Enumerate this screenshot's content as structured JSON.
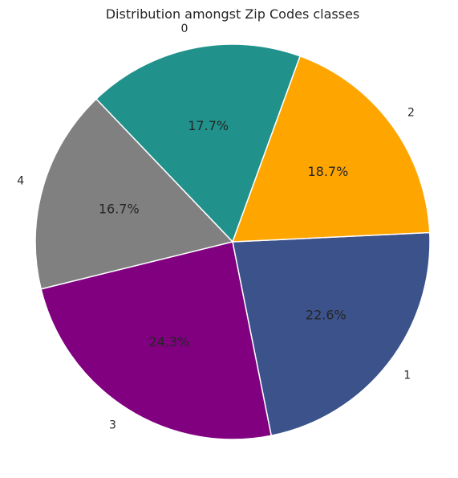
{
  "chart_data": {
    "type": "pie",
    "title": "Distribution amongst Zip Codes classes",
    "start_angle_deg": 70,
    "direction": "counterclockwise",
    "slices": [
      {
        "label": "0",
        "percent": 17.7,
        "percent_label": "17.7%",
        "color": "#21918c"
      },
      {
        "label": "4",
        "percent": 16.7,
        "percent_label": "16.7%",
        "color": "#808080"
      },
      {
        "label": "3",
        "percent": 24.3,
        "percent_label": "24.3%",
        "color": "#800080"
      },
      {
        "label": "1",
        "percent": 22.6,
        "percent_label": "22.6%",
        "color": "#3b528b"
      },
      {
        "label": "2",
        "percent": 18.7,
        "percent_label": "18.7%",
        "color": "#ffa500"
      }
    ]
  }
}
